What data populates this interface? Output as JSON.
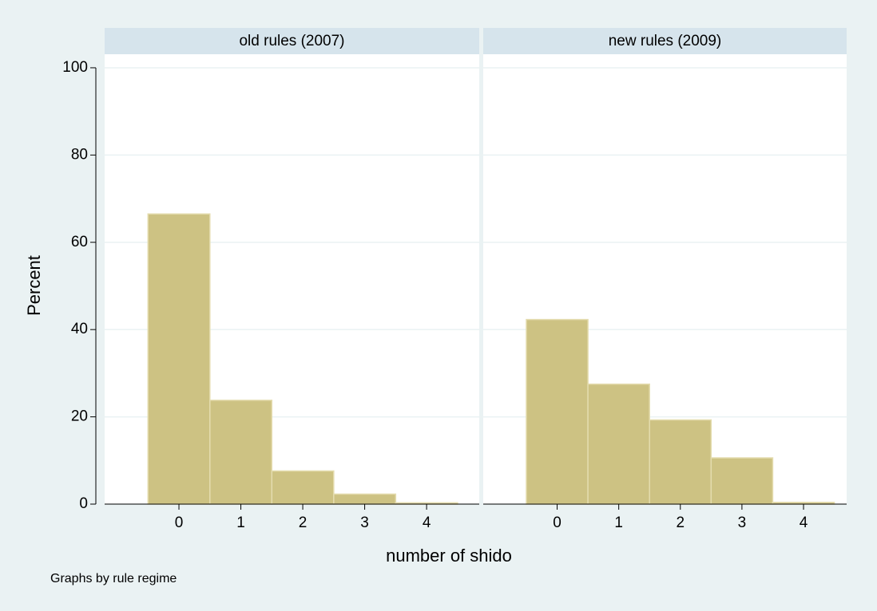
{
  "y_label": "Percent",
  "x_label": "number of shido",
  "note": "Graphs by rule regime",
  "ylim": [
    0,
    103.1
  ],
  "yticks": [
    0,
    20,
    40,
    60,
    80,
    100
  ],
  "grid": true,
  "color": "#cdc283",
  "chart_data": [
    {
      "type": "histogram",
      "title": "old rules (2007)",
      "bins": [
        -0.5,
        0.5,
        1.5,
        2.5,
        3.5,
        4.5
      ],
      "values": [
        66.5,
        23.8,
        7.6,
        2.3,
        0.3
      ],
      "xlim": [
        -1.2,
        4.85
      ],
      "xticks": [
        0,
        1,
        2,
        3,
        4
      ]
    },
    {
      "type": "histogram",
      "title": "new rules (2009)",
      "bins": [
        -0.5,
        0.5,
        1.5,
        2.5,
        3.5,
        4.5
      ],
      "values": [
        42.3,
        27.5,
        19.3,
        10.6,
        0.4
      ],
      "xlim": [
        -1.2,
        4.7
      ],
      "xticks": [
        0,
        1,
        2,
        3,
        4
      ]
    }
  ]
}
